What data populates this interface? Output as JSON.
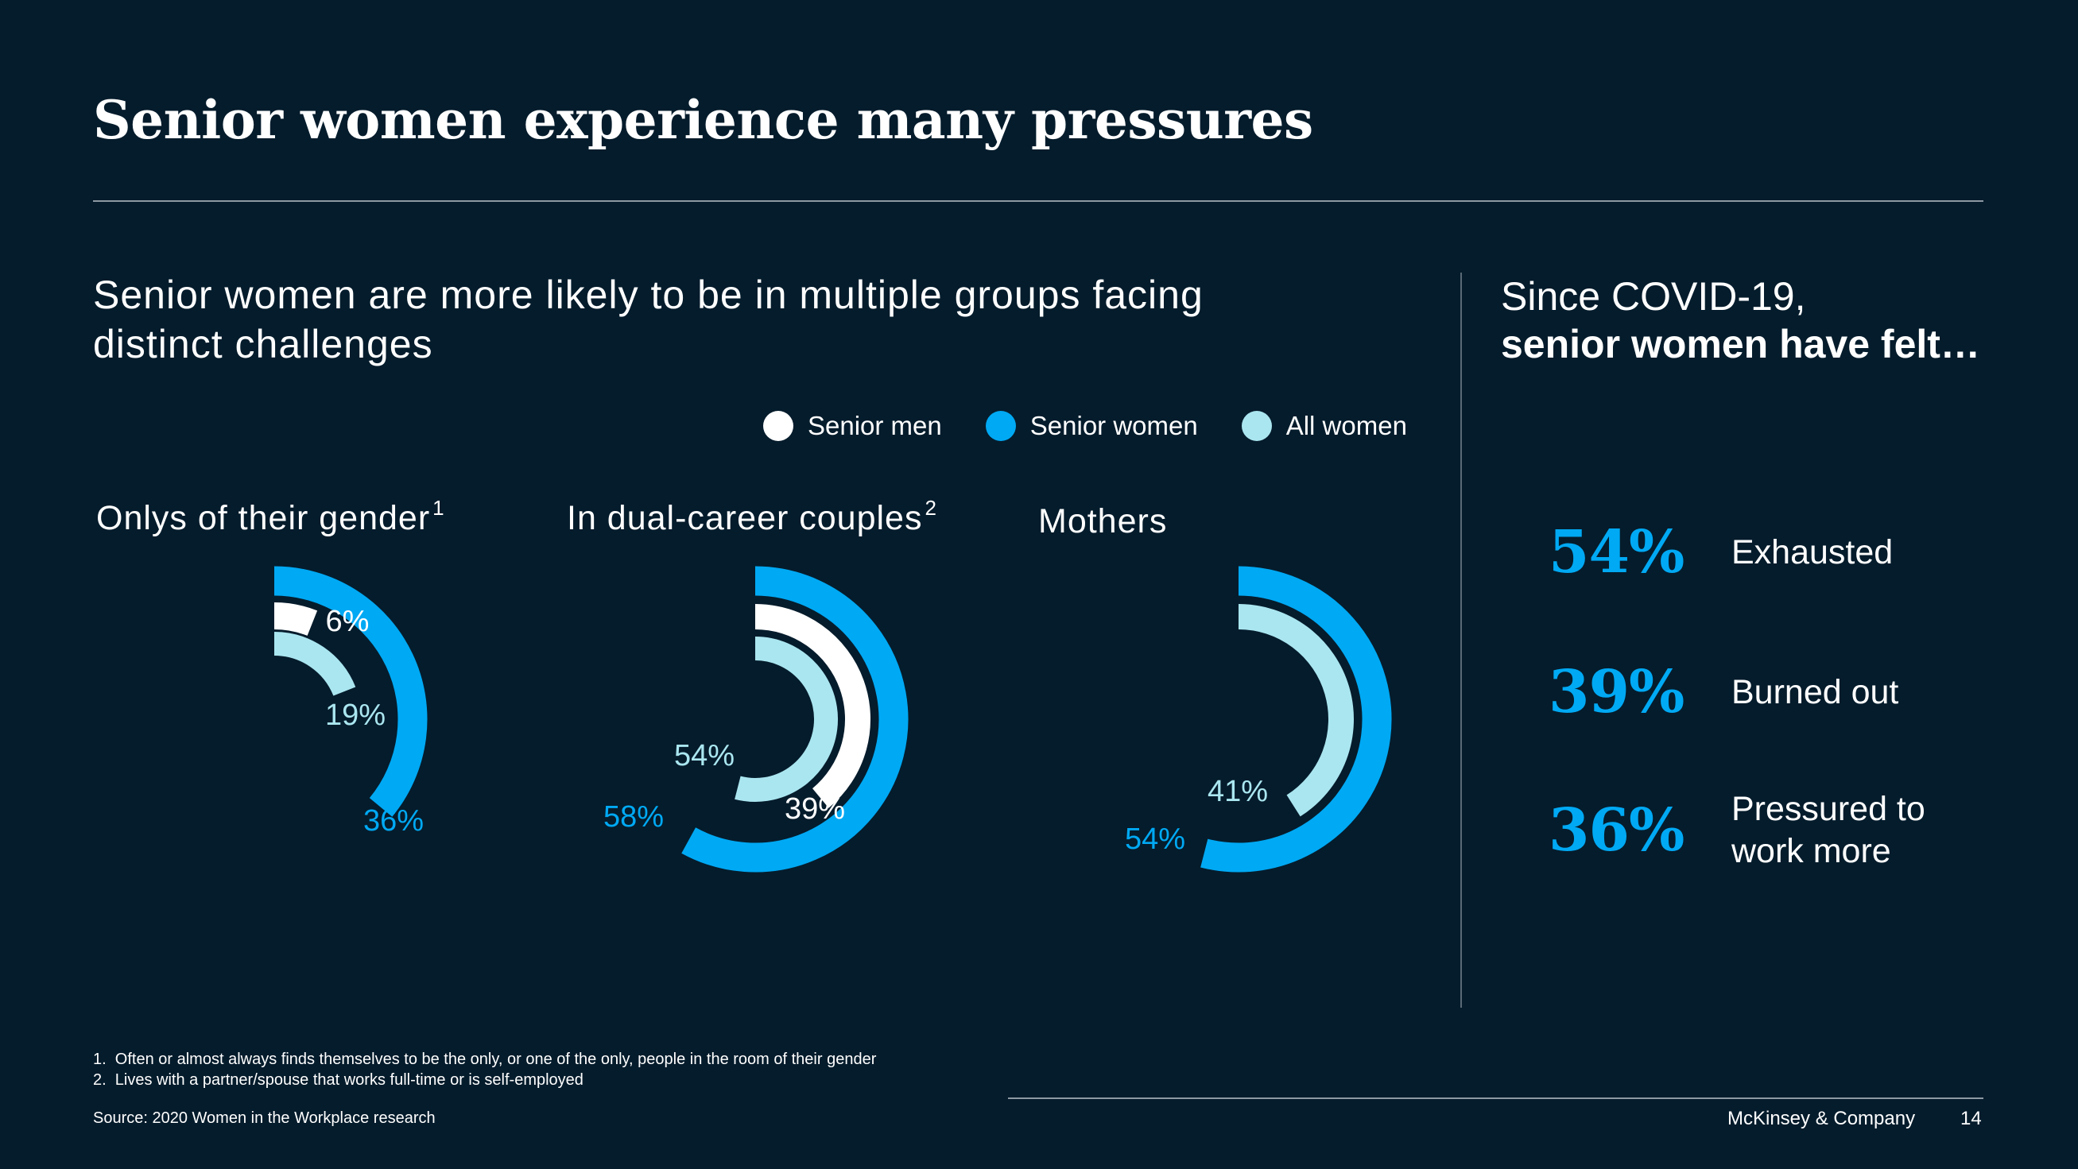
{
  "title": "Senior women experience many pressures",
  "subtitle": "Senior women are more likely to be in multiple groups facing distinct challenges",
  "legend": [
    {
      "label": "Senior men",
      "color": "#ffffff"
    },
    {
      "label": "Senior women",
      "color": "#00a9f4"
    },
    {
      "label": "All women",
      "color": "#aae6f0"
    }
  ],
  "chart_data": [
    {
      "type": "radial-bar",
      "title": "Onlys of their gender",
      "title_footnote": "1",
      "series": [
        {
          "name": "Senior women",
          "value": 36,
          "label": "36%"
        },
        {
          "name": "Senior men",
          "value": 6,
          "label": "6%"
        },
        {
          "name": "All women",
          "value": 19,
          "label": "19%"
        }
      ]
    },
    {
      "type": "radial-bar",
      "title": "In dual-career couples",
      "title_footnote": "2",
      "series": [
        {
          "name": "Senior women",
          "value": 58,
          "label": "58%"
        },
        {
          "name": "Senior men",
          "value": 39,
          "label": "39%"
        },
        {
          "name": "All women",
          "value": 54,
          "label": "54%"
        }
      ]
    },
    {
      "type": "radial-bar",
      "title": "Mothers",
      "title_footnote": "",
      "series": [
        {
          "name": "Senior women",
          "value": 54,
          "label": "54%"
        },
        {
          "name": "All women",
          "value": 41,
          "label": "41%"
        }
      ]
    }
  ],
  "covid": {
    "heading_line1": "Since COVID-19,",
    "heading_line2": "senior women have felt…",
    "stats": [
      {
        "value": "54%",
        "label": "Exhausted"
      },
      {
        "value": "39%",
        "label": "Burned out"
      },
      {
        "value": "36%",
        "label": "Pressured to work more"
      }
    ]
  },
  "footnotes": [
    "1.  Often or almost always finds themselves to be the only, or one of the only, people in the room of their gender",
    "2.  Lives with a partner/spouse that works full-time or is self-employed"
  ],
  "source": "Source: 2020 Women in the Workplace research",
  "brand": "McKinsey & Company",
  "page_number": "14"
}
